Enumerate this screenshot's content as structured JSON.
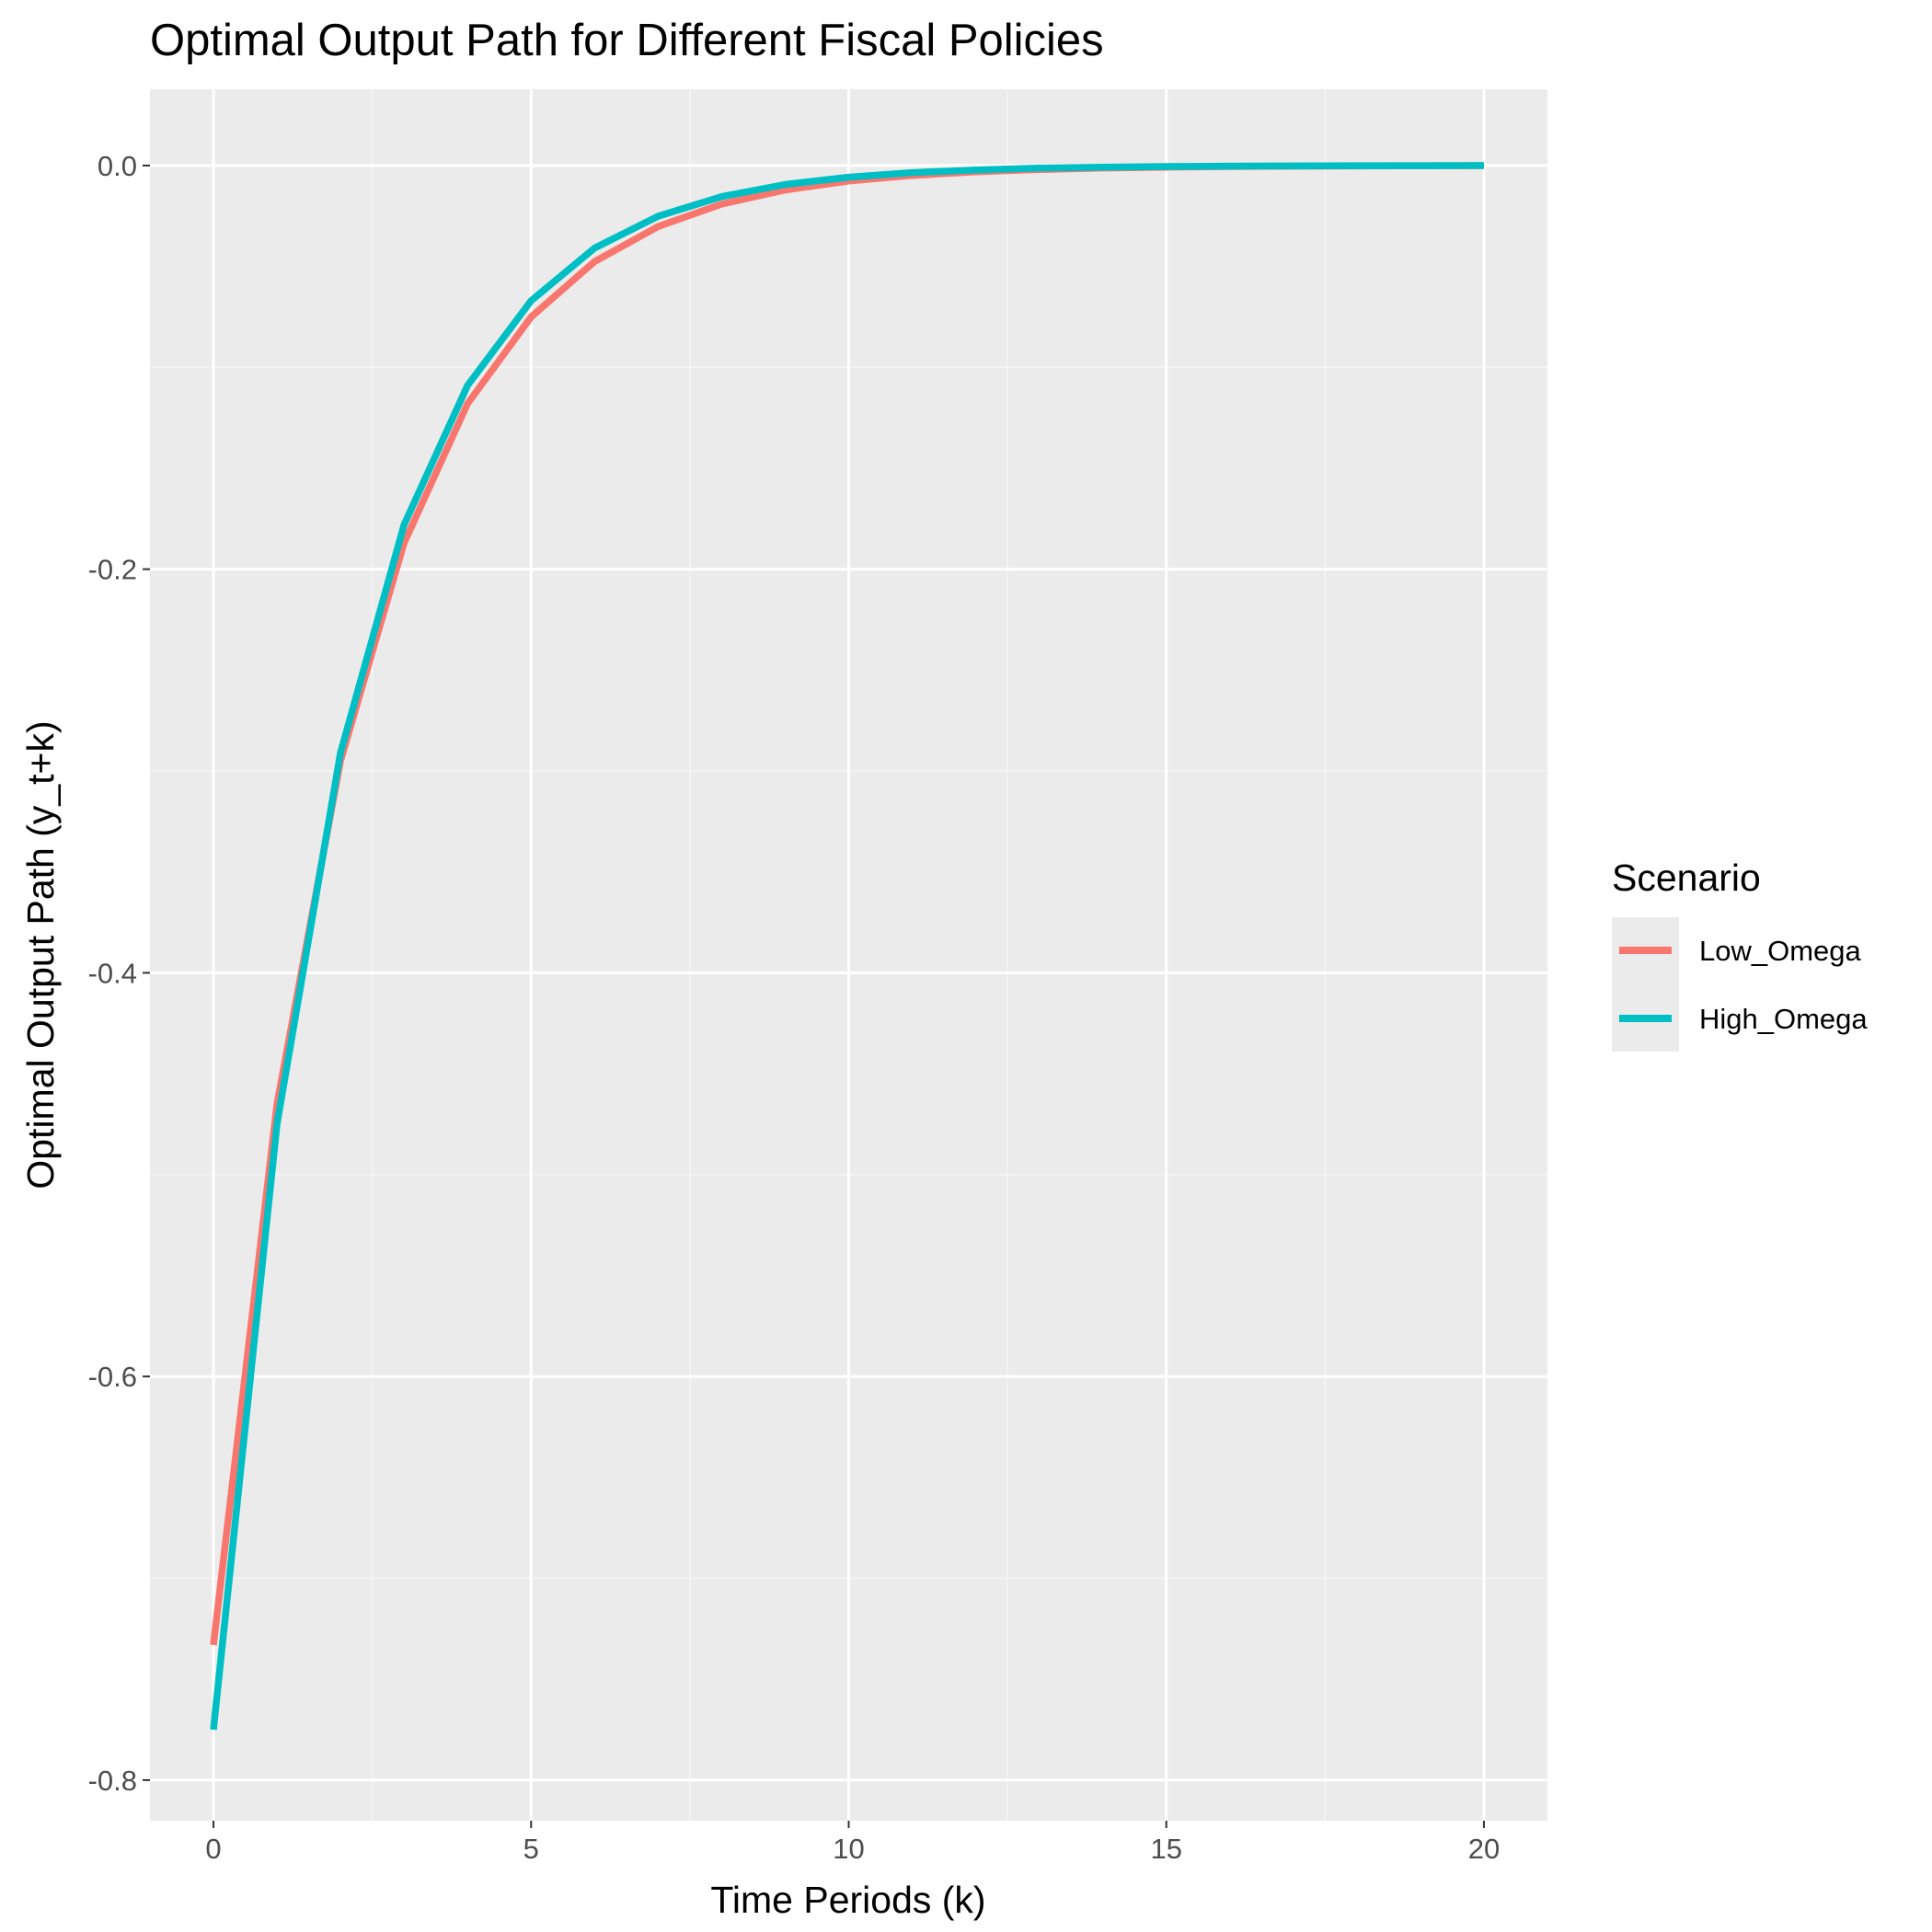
{
  "chart_data": {
    "type": "line",
    "title": "Optimal Output Path for Different Fiscal Policies",
    "xlabel": "Time Periods (k)",
    "ylabel": "Optimal Output Path (y_t+k)",
    "xlim": [
      -1,
      21
    ],
    "ylim": [
      -0.8201,
      0.0378
    ],
    "x_ticks": [
      0,
      5,
      10,
      15,
      20
    ],
    "x_tick_labels": [
      "0",
      "5",
      "10",
      "15",
      "20"
    ],
    "y_ticks": [
      0.0,
      -0.2,
      -0.4,
      -0.6,
      -0.8
    ],
    "y_tick_labels": [
      "0.0",
      "-0.2",
      "-0.4",
      "-0.6",
      "-0.8"
    ],
    "grid": true,
    "legend_position": "right",
    "legend_title": "Scenario",
    "x": [
      0,
      1,
      2,
      3,
      4,
      5,
      6,
      7,
      8,
      9,
      10,
      11,
      12,
      13,
      14,
      15,
      16,
      17,
      18,
      19,
      20
    ],
    "series": [
      {
        "name": "Low_Omega",
        "color": "#F8766D",
        "values": [
          -0.733,
          -0.465,
          -0.295,
          -0.187,
          -0.118,
          -0.075,
          -0.0476,
          -0.0302,
          -0.0191,
          -0.0121,
          -0.0077,
          -0.0049,
          -0.0031,
          -0.002,
          -0.0012,
          -0.0008,
          -0.0005,
          -0.0003,
          -0.0002,
          -0.0001,
          -0.0001
        ]
      },
      {
        "name": "High_Omega",
        "color": "#00BFC4",
        "values": [
          -0.775,
          -0.475,
          -0.291,
          -0.178,
          -0.109,
          -0.067,
          -0.0409,
          -0.0251,
          -0.0154,
          -0.0094,
          -0.0058,
          -0.0035,
          -0.0022,
          -0.0013,
          -0.0008,
          -0.0005,
          -0.0003,
          -0.0002,
          -0.0001,
          -0.0001,
          0.0
        ]
      }
    ]
  },
  "colors": {
    "panel_background": "#EBEBEB",
    "grid_major": "#FFFFFF",
    "grid_minor": "#F5F5F5",
    "tick_text": "#4D4D4D",
    "tick_mark": "#333333"
  }
}
